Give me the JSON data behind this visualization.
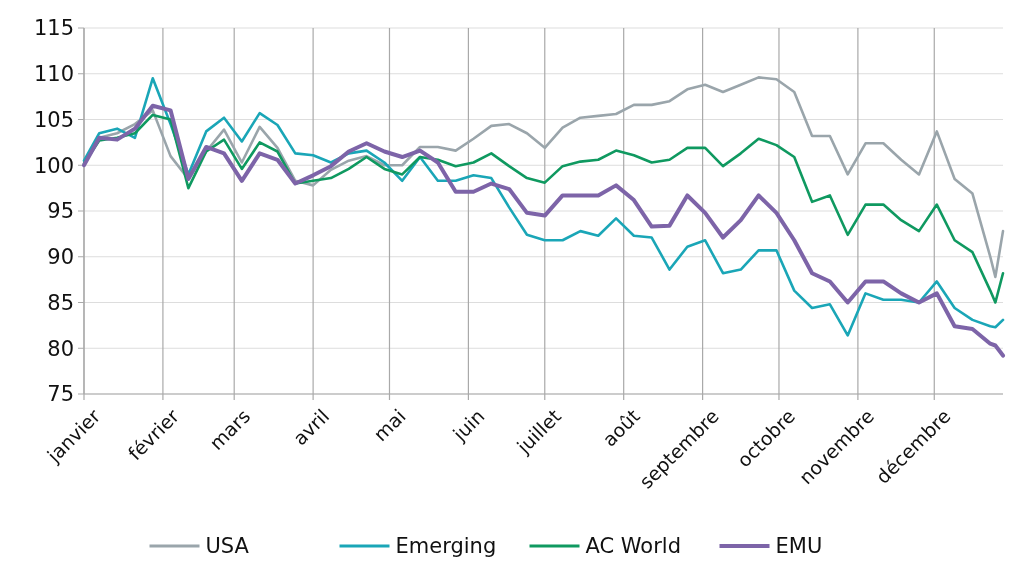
{
  "chart_data": {
    "type": "line",
    "x": [
      "--01-01",
      "--01-07",
      "--01-14",
      "--01-21",
      "--01-28",
      "--02-04",
      "--02-11",
      "--02-18",
      "--02-25",
      "--03-04",
      "--03-11",
      "--03-18",
      "--03-25",
      "--04-01",
      "--04-08",
      "--04-15",
      "--04-22",
      "--04-29",
      "--05-06",
      "--05-13",
      "--05-20",
      "--05-27",
      "--06-03",
      "--06-10",
      "--06-17",
      "--06-24",
      "--07-01",
      "--07-08",
      "--07-15",
      "--07-22",
      "--07-29",
      "--08-05",
      "--08-12",
      "--08-19",
      "--08-26",
      "--09-02",
      "--09-09",
      "--09-16",
      "--09-23",
      "--09-30",
      "--10-07",
      "--10-14",
      "--10-21",
      "--10-28",
      "--11-04",
      "--11-11",
      "--11-18",
      "--11-25",
      "--12-02",
      "--12-09",
      "--12-16",
      "--12-23",
      "--12-25",
      "--12-28"
    ],
    "series": [
      {
        "name": "USA",
        "color": "#9aa5ab",
        "values": [
          100,
          103,
          103.5,
          104.5,
          106,
          101,
          98.5,
          101.5,
          103.9,
          100.3,
          104.2,
          101.9,
          98.3,
          97.8,
          99.5,
          100.5,
          101,
          100,
          100,
          102,
          102,
          101.6,
          102.9,
          104.3,
          104.5,
          103.5,
          101.9,
          104.1,
          105.2,
          105.4,
          105.6,
          106.6,
          106.6,
          107,
          108.3,
          108.8,
          108,
          108.8,
          109.6,
          109.4,
          108,
          103.2,
          103.2,
          99,
          102.4,
          102.4,
          100.6,
          99,
          103.7,
          98.5,
          96.9,
          90,
          87.8,
          92.8
        ]
      },
      {
        "name": "Emerging",
        "color": "#1aa6b7",
        "values": [
          100.5,
          103.5,
          104,
          103,
          109.5,
          104.5,
          99,
          103.7,
          105.2,
          102.6,
          105.7,
          104.4,
          101.3,
          101.1,
          100.3,
          101.3,
          101.6,
          100.3,
          98.3,
          100.9,
          98.3,
          98.3,
          98.9,
          98.6,
          95.4,
          92.4,
          91.8,
          91.8,
          92.8,
          92.3,
          94.2,
          92.3,
          92.1,
          88.6,
          91.1,
          91.8,
          88.2,
          88.6,
          90.7,
          90.7,
          86.3,
          84.4,
          84.8,
          81.4,
          86,
          85.3,
          85.3,
          85,
          87.3,
          84.4,
          83.1,
          82.4,
          82.3,
          83.1
        ]
      },
      {
        "name": "AC World",
        "color": "#0f9960",
        "values": [
          100.2,
          102.7,
          103,
          103.5,
          105.5,
          105,
          97.5,
          101.5,
          102.8,
          99.6,
          102.5,
          101.5,
          98,
          98.3,
          98.6,
          99.6,
          100.9,
          99.6,
          99,
          100.9,
          100.6,
          99.9,
          100.3,
          101.3,
          99.9,
          98.6,
          98.1,
          99.9,
          100.4,
          100.6,
          101.6,
          101.1,
          100.3,
          100.6,
          101.9,
          101.9,
          99.9,
          101.3,
          102.9,
          102.2,
          100.9,
          96,
          96.7,
          92.4,
          95.7,
          95.7,
          94,
          92.8,
          95.7,
          91.8,
          90.5,
          86.3,
          85,
          88.2
        ]
      },
      {
        "name": "EMU",
        "color": "#7d64a8",
        "values": [
          100,
          103,
          102.8,
          104,
          106.5,
          106,
          98.5,
          102,
          101.3,
          98.3,
          101.3,
          100.6,
          98,
          98.9,
          99.9,
          101.5,
          102.4,
          101.5,
          100.9,
          101.6,
          100.3,
          97.1,
          97.1,
          98,
          97.4,
          94.8,
          94.5,
          96.7,
          96.7,
          96.7,
          97.8,
          96.2,
          93.3,
          93.4,
          96.7,
          94.8,
          92.1,
          94,
          96.7,
          94.8,
          91.8,
          88.2,
          87.3,
          85,
          87.3,
          87.3,
          86,
          85,
          86,
          82.4,
          82.1,
          80.5,
          80.3,
          79.2
        ]
      }
    ],
    "xlim": [
      "--01-01",
      "--12-28"
    ],
    "xticks": [
      {
        "value": "--01-01",
        "label": "janvier"
      },
      {
        "value": "--02-01",
        "label": "février"
      },
      {
        "value": "--03-01",
        "label": "mars"
      },
      {
        "value": "--04-01",
        "label": "avril"
      },
      {
        "value": "--05-01",
        "label": "mai"
      },
      {
        "value": "--06-01",
        "label": "juin"
      },
      {
        "value": "--07-01",
        "label": "juillet"
      },
      {
        "value": "--08-01",
        "label": "août"
      },
      {
        "value": "--09-01",
        "label": "septembre"
      },
      {
        "value": "--10-01",
        "label": "octobre"
      },
      {
        "value": "--11-01",
        "label": "novembre"
      },
      {
        "value": "--12-01",
        "label": "décembre"
      }
    ],
    "ylim": [
      75,
      115
    ],
    "yticks": [
      75,
      80,
      85,
      90,
      95,
      100,
      105,
      110,
      115
    ],
    "grid": true,
    "legend": "bottom",
    "marker": "none",
    "line_style": "solid"
  }
}
